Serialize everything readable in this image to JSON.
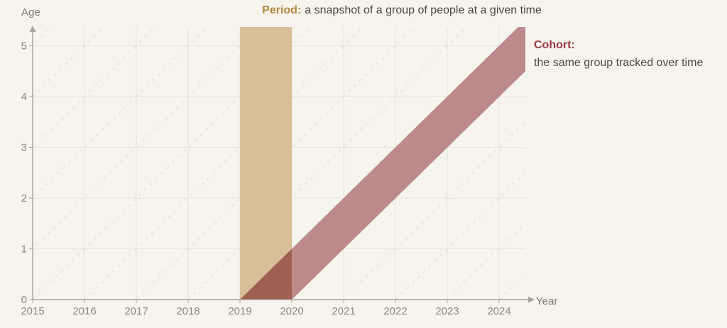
{
  "title": {
    "keyword": "Period:",
    "rest": "a snapshot of a group of people at a given time"
  },
  "annotation": {
    "keyword": "Cohort:",
    "rest": "the same group tracked over time"
  },
  "axes": {
    "x_label": "Year",
    "y_label": "Age"
  },
  "colors": {
    "background": "#f7f4ee",
    "grid": "#e5e2d9",
    "diagonal_dash": "#ddd9d0",
    "axis": "#a9a59c",
    "tick_text": "#8b877e",
    "period_fill": "#d8bf97",
    "cohort_fill": "#bd8a8c",
    "overlap_fill": "#a05f50",
    "period_keyword": "#b3873e",
    "cohort_keyword": "#9c3a40",
    "body_text": "#4a473f"
  },
  "chart_data": {
    "type": "area",
    "title": "Period: a snapshot of a group of people at a given time",
    "x_label": "Year",
    "y_label": "Age",
    "x_ticks": [
      2015,
      2016,
      2017,
      2018,
      2019,
      2020,
      2021,
      2022,
      2023,
      2024
    ],
    "y_ticks": [
      0,
      1,
      2,
      3,
      4,
      5
    ],
    "x_range": [
      2015,
      2024.5
    ],
    "y_range": [
      0,
      5.37
    ],
    "grid": true,
    "legend": false,
    "period_band": {
      "label": "Period",
      "from_year": 2019,
      "to_year": 2020,
      "description": "vertical band covering all ages in one time interval"
    },
    "cohort_band": {
      "label": "Cohort",
      "start_year": 2019,
      "end_year": 2020,
      "slope": "1 year of age per calendar year",
      "description": "diagonal band starting at age 0 between 2019 and 2020, rising to age 5+ by 2024"
    },
    "diagonal_guides": [
      2010,
      2011,
      2012,
      2013,
      2014,
      2015,
      2016,
      2017,
      2018,
      2019,
      2020,
      2021,
      2022,
      2023,
      2024
    ]
  }
}
